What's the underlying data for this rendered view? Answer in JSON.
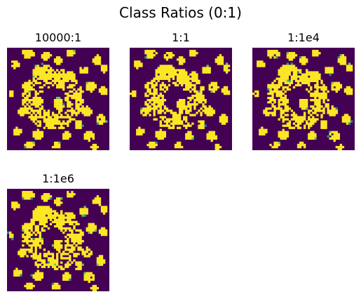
{
  "figure": {
    "title": "Class Ratios (0:1)"
  },
  "colors": {
    "class0": "#440154",
    "class1": "#fde725",
    "edge_teal": "#21918c",
    "edge_green": "#5ec962"
  },
  "chart_data": [
    {
      "type": "heatmap",
      "title": "10000:1",
      "values": [
        0,
        1
      ],
      "variant": 0
    },
    {
      "type": "heatmap",
      "title": "1:1",
      "values": [
        0,
        1
      ],
      "variant": 1
    },
    {
      "type": "heatmap",
      "title": "1:1e4",
      "values": [
        0,
        1
      ],
      "variant": 2
    },
    {
      "type": "heatmap",
      "title": "1:1e6",
      "values": [
        0,
        1
      ],
      "variant": 3
    }
  ]
}
